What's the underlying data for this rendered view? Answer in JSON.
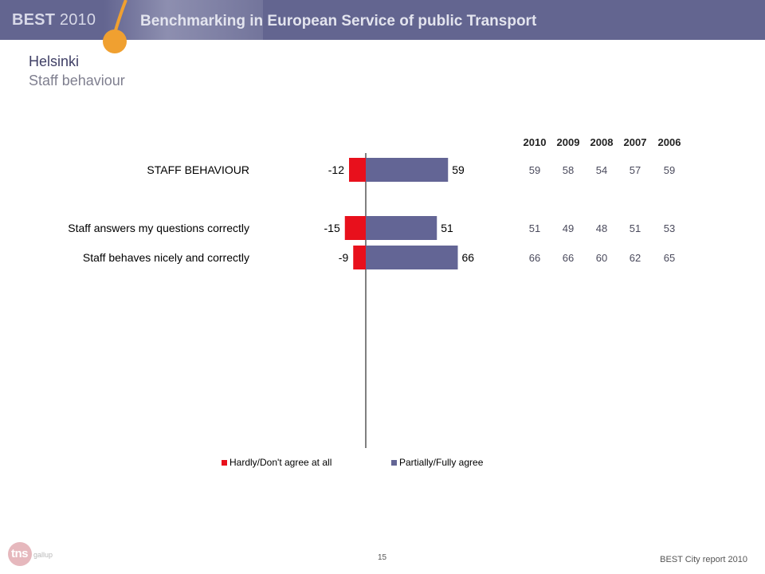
{
  "header": {
    "brand": "BEST",
    "brand_year": "2010",
    "title": "Benchmarking in European Service of public Transport"
  },
  "page": {
    "title": "Helsinki",
    "subtitle": "Staff behaviour"
  },
  "chart_data": {
    "type": "bar",
    "orientation": "horizontal-diverging",
    "categories": [
      "STAFF BEHAVIOUR",
      "Staff answers my questions correctly",
      "Staff behaves nicely and correctly"
    ],
    "series": [
      {
        "name": "Hardly/Don't agree at all",
        "values": [
          -12,
          -15,
          -9
        ]
      },
      {
        "name": "Partially/Fully agree",
        "values": [
          59,
          51,
          66
        ]
      }
    ],
    "value_labels": {
      "negative": [
        "-12",
        "-15",
        "-9"
      ],
      "positive": [
        "59",
        "51",
        "66"
      ]
    },
    "xlim": [
      -40,
      110
    ],
    "legend_position": "bottom",
    "colors": {
      "negative": "#e8101c",
      "positive": "#636595"
    },
    "history_table": {
      "years": [
        "2010",
        "2009",
        "2008",
        "2007",
        "2006"
      ],
      "rows": [
        [
          "59",
          "58",
          "54",
          "57",
          "59"
        ],
        [
          "51",
          "49",
          "48",
          "51",
          "53"
        ],
        [
          "66",
          "66",
          "60",
          "62",
          "65"
        ]
      ]
    }
  },
  "footer": {
    "page_number": "15",
    "report": "BEST City report 2010",
    "logo_text": "tns",
    "logo_sub": "gallup"
  },
  "theme": {
    "header_bg": "#636590",
    "accent_orange": "#f0a030"
  }
}
